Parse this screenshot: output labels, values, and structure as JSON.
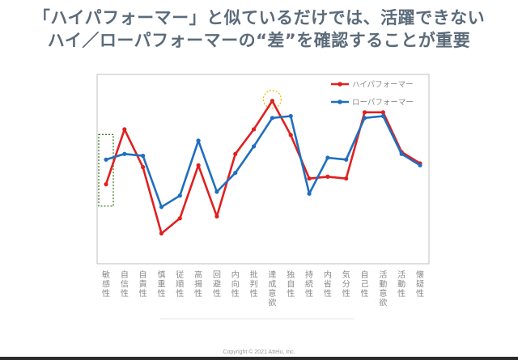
{
  "title_line1": "「ハイパフォーマー」と似ているだけでは、活躍できない",
  "title_line2": "ハイ／ローパフォーマーの“差”を確認することが重要",
  "copyright": "Copyright © 2021 Attelu, Inc.",
  "chart_data": {
    "type": "line",
    "categories": [
      "敏感性",
      "自信性",
      "自責性",
      "慎重性",
      "従順性",
      "高揚性",
      "回避性",
      "内向性",
      "批判性",
      "達成意欲",
      "独自性",
      "持続性",
      "内省性",
      "気分性",
      "自己性",
      "活動意欲",
      "活動性",
      "懐疑性"
    ],
    "series": [
      {
        "name": "ハイパフォーマー",
        "color": "#e02020",
        "values": [
          42,
          71,
          51,
          16,
          24,
          52,
          25,
          58,
          71,
          86,
          68,
          45,
          46,
          45,
          80,
          80,
          59,
          53
        ]
      },
      {
        "name": "ローパフォーマー",
        "color": "#1f6fbf",
        "values": [
          55,
          58,
          57,
          30,
          36,
          65,
          38,
          48,
          62,
          77,
          78,
          37,
          56,
          55,
          77,
          78,
          58,
          52
        ]
      }
    ],
    "ylim": [
      0,
      100
    ],
    "legend": "top-right",
    "grid": false,
    "highlights": [
      {
        "category": "敏感性",
        "shape": "dashed-rectangle",
        "color": "#3a7a1f"
      },
      {
        "category": "達成意欲",
        "shape": "dashed-circle",
        "color": "#f5b800"
      }
    ]
  }
}
